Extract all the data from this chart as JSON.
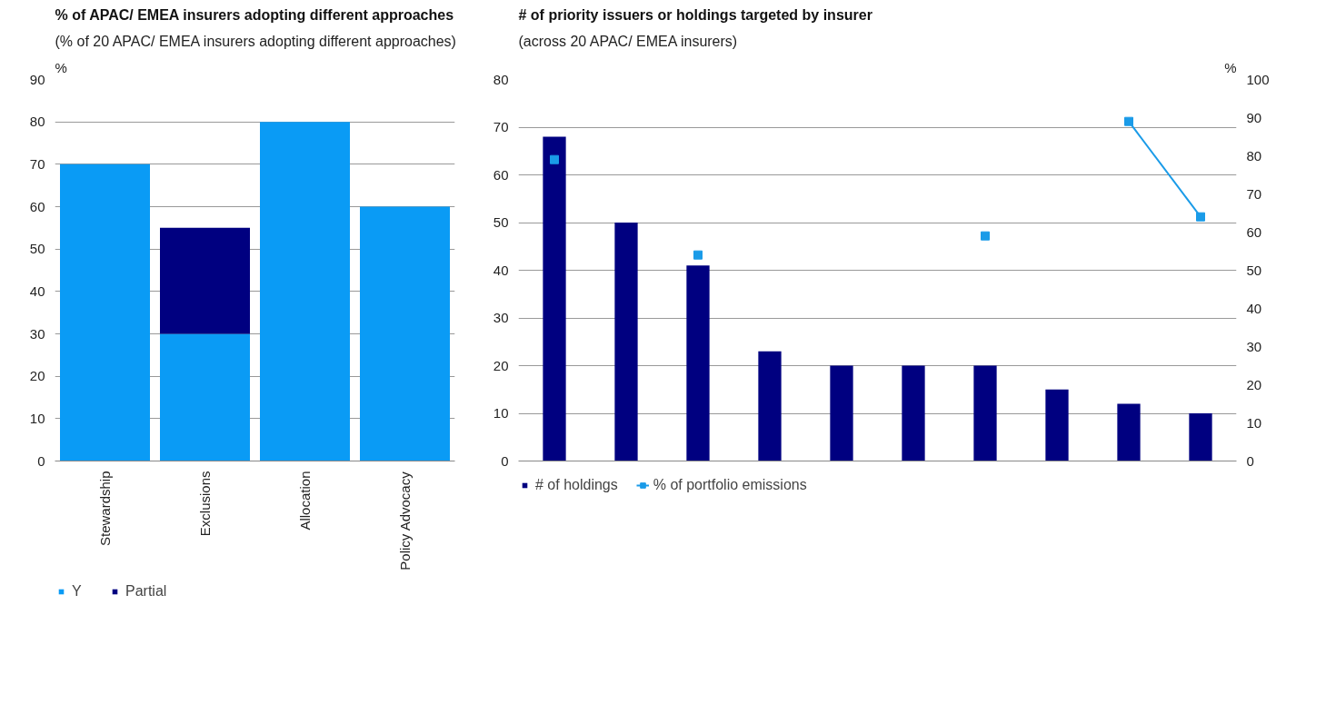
{
  "chart_data": [
    {
      "type": "bar",
      "title": "% of APAC/ EMEA insurers adopting different approaches",
      "subtitle": "(% of 20 APAC/ EMEA insurers adopting different approaches)",
      "ylabel": "%",
      "categories": [
        "Stewardship",
        "Exclusions",
        "Allocation",
        "Policy Advocacy"
      ],
      "stacked": true,
      "series": [
        {
          "name": "Y",
          "color": "#0a9bf5",
          "values": [
            70,
            30,
            80,
            60
          ]
        },
        {
          "name": "Partial",
          "color": "#000080",
          "values": [
            0,
            25,
            0,
            0
          ]
        }
      ],
      "ylim": [
        0,
        90
      ],
      "yticks": [
        0,
        10,
        20,
        30,
        40,
        50,
        60,
        70,
        80,
        90
      ],
      "grid": "y",
      "legend": "bottom left"
    },
    {
      "type": "bar",
      "title": "# of priority issuers or holdings targeted by insurer",
      "subtitle": "(across 20 APAC/ EMEA insurers)",
      "y2label": "%",
      "categories": [
        null,
        null,
        null,
        null,
        null,
        null,
        null,
        null,
        null,
        null
      ],
      "series": [
        {
          "name": "# of holdings",
          "color": "#000080",
          "values": [
            68,
            50,
            41,
            23,
            20,
            20,
            20,
            15,
            12,
            10
          ]
        },
        {
          "name": "% of portfolio emissions",
          "type": "line",
          "axis": "y2",
          "color": "#1a9be8",
          "marker": "square",
          "values": [
            79,
            null,
            54,
            null,
            null,
            null,
            59,
            null,
            89,
            64
          ]
        }
      ],
      "ylim": [
        0,
        80
      ],
      "yticks": [
        0,
        10,
        20,
        30,
        40,
        50,
        60,
        70,
        80
      ],
      "y2lim": [
        0,
        100
      ],
      "y2ticks": [
        0,
        10,
        20,
        30,
        40,
        50,
        60,
        70,
        80,
        90,
        100
      ],
      "grid": "y",
      "legend": "bottom left"
    }
  ]
}
